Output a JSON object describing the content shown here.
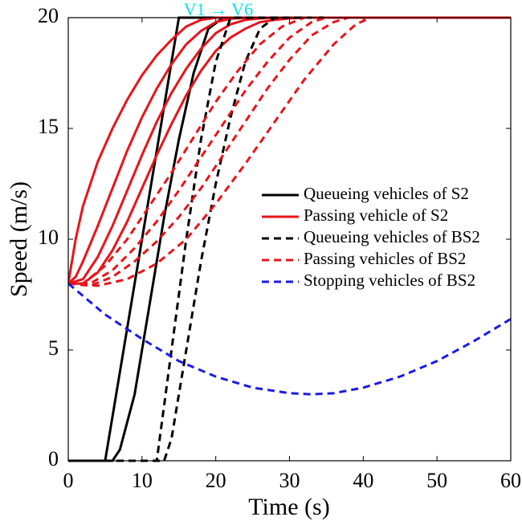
{
  "chart_data": {
    "type": "line",
    "xlabel": "Time (s)",
    "ylabel": "Speed (m/s)",
    "annotation": "V1 → V6",
    "annotation_color": "#00e5e5",
    "xlim": [
      0,
      60
    ],
    "ylim": [
      0,
      20
    ],
    "xticks": [
      0,
      10,
      20,
      30,
      40,
      50,
      60
    ],
    "yticks": [
      0,
      5,
      10,
      15,
      20
    ],
    "legend": "right",
    "series": [
      {
        "name": "Queueing vehicles of S2",
        "color": "#000000",
        "dash": "solid",
        "lines": [
          {
            "x": [
              0,
              5,
              15,
              60
            ],
            "values": [
              0,
              0,
              20,
              20
            ]
          },
          {
            "x": [
              0,
              6,
              7,
              9,
              11,
              13,
              15,
              17,
              19,
              21,
              60
            ],
            "values": [
              0,
              0,
              0.5,
              3,
              7,
              11,
              14.5,
              17.5,
              19.5,
              20,
              20
            ]
          }
        ]
      },
      {
        "name": "Passing vehicle of S2",
        "color": "#e8141b",
        "dash": "solid",
        "lines": [
          {
            "x": [
              0,
              1,
              2,
              4,
              6,
              8,
              10,
              12,
              14,
              16,
              18,
              20,
              60
            ],
            "values": [
              8,
              10,
              11.5,
              13.5,
              15,
              16.3,
              17.4,
              18.3,
              19,
              19.6,
              19.9,
              20,
              20
            ]
          },
          {
            "x": [
              0,
              1,
              2,
              4,
              6,
              8,
              10,
              12,
              14,
              16,
              18,
              20,
              22,
              24,
              60
            ],
            "values": [
              8,
              8.3,
              9,
              10.6,
              12.3,
              14,
              15.5,
              16.8,
              17.9,
              18.8,
              19.4,
              19.8,
              19.95,
              20,
              20
            ]
          },
          {
            "x": [
              0,
              2,
              4,
              6,
              8,
              10,
              12,
              14,
              16,
              18,
              20,
              22,
              24,
              26,
              28,
              60
            ],
            "values": [
              8,
              8.2,
              9.2,
              10.6,
              12.2,
              13.8,
              15.3,
              16.6,
              17.7,
              18.6,
              19.3,
              19.7,
              19.9,
              19.97,
              20,
              20
            ]
          },
          {
            "x": [
              0,
              2,
              4,
              6,
              8,
              10,
              12,
              14,
              16,
              18,
              20,
              22,
              24,
              26,
              28,
              30,
              32,
              60
            ],
            "values": [
              8,
              8,
              8.5,
              9.5,
              10.8,
              12.3,
              13.8,
              15.2,
              16.5,
              17.6,
              18.5,
              19.1,
              19.5,
              19.8,
              19.9,
              19.97,
              20,
              20
            ]
          }
        ]
      },
      {
        "name": "Queueing vehicles of BS2",
        "color": "#000000",
        "dash": "dashed",
        "lines": [
          {
            "x": [
              0,
              12,
              14,
              16,
              18,
              20,
              22,
              60
            ],
            "values": [
              0,
              0,
              5,
              10,
              14.5,
              18,
              20,
              20
            ]
          },
          {
            "x": [
              0,
              13,
              14,
              16,
              18,
              20,
              22,
              24,
              26,
              28,
              60
            ],
            "values": [
              0,
              0,
              1,
              5,
              9,
              12.5,
              15.5,
              18,
              19.5,
              20,
              20
            ]
          }
        ]
      },
      {
        "name": "Passing vehicles of BS2",
        "color": "#e8141b",
        "dash": "dashed",
        "lines": [
          {
            "x": [
              0,
              2,
              5,
              8,
              11,
              14,
              17,
              20,
              23,
              26,
              29,
              32,
              60
            ],
            "values": [
              8,
              8,
              8.8,
              10,
              11.5,
              13,
              14.6,
              16.2,
              17.6,
              18.8,
              19.6,
              20,
              20
            ]
          },
          {
            "x": [
              0,
              3,
              6,
              9,
              12,
              15,
              18,
              21,
              24,
              27,
              30,
              33,
              35,
              60
            ],
            "values": [
              8,
              8,
              8.6,
              9.6,
              10.8,
              12.2,
              13.7,
              15.2,
              16.7,
              18,
              19.1,
              19.8,
              20,
              20
            ]
          },
          {
            "x": [
              0,
              3,
              6,
              9,
              12,
              15,
              18,
              21,
              24,
              27,
              30,
              33,
              36,
              38,
              60
            ],
            "values": [
              8,
              7.9,
              8.3,
              9,
              9.9,
              11,
              12.3,
              13.8,
              15.3,
              16.8,
              18.1,
              19.2,
              19.8,
              20,
              20
            ]
          },
          {
            "x": [
              0,
              4,
              8,
              12,
              16,
              20,
              24,
              28,
              32,
              36,
              39,
              41,
              60
            ],
            "values": [
              8,
              7.9,
              8.2,
              8.9,
              10,
              11.6,
              13.4,
              15.3,
              17.2,
              18.8,
              19.7,
              20,
              20
            ]
          }
        ]
      },
      {
        "name": "Stopping vehicles of BS2",
        "color": "#1a1ae6",
        "dash": "dashed",
        "lines": [
          {
            "x": [
              0,
              5,
              10,
              15,
              20,
              25,
              30,
              33,
              36,
              40,
              45,
              50,
              55,
              60
            ],
            "values": [
              8,
              6.6,
              5.5,
              4.5,
              3.8,
              3.3,
              3.05,
              3,
              3.05,
              3.3,
              3.8,
              4.5,
              5.4,
              6.4
            ]
          }
        ]
      }
    ]
  }
}
